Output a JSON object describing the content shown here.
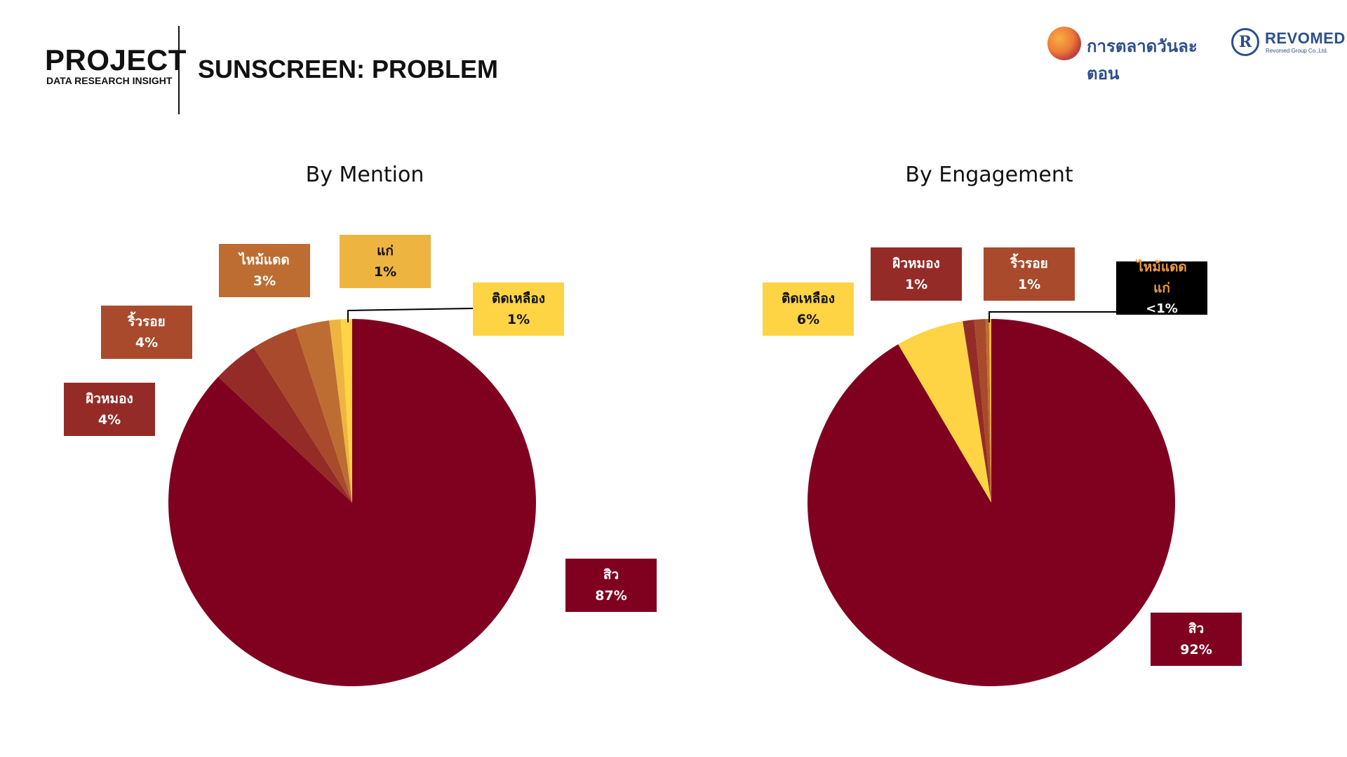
{
  "header": {
    "project_title": "PROJECT",
    "project_subtitle": "DATA RESEARCH INSIGHT",
    "page_title": "SUNSCREEN: PROBLEM"
  },
  "logos": {
    "logo1_text": "การตลาดวันละตอน",
    "logo2_mark": "R",
    "logo2_text": "REVOMED",
    "logo2_sub": "Revomed Group Co.,Ltd."
  },
  "chart_data": [
    {
      "type": "pie",
      "title": "By Mention",
      "slices": [
        {
          "label": "สิว",
          "value": 87,
          "display": "87%",
          "color": "#800020",
          "text_color": "#ffffff"
        },
        {
          "label": "ผิวหมอง",
          "value": 4,
          "display": "4%",
          "color": "#952b26",
          "text_color": "#ffffff"
        },
        {
          "label": "ริ้วรอย",
          "value": 4,
          "display": "4%",
          "color": "#a84a2b",
          "text_color": "#ffffff"
        },
        {
          "label": "ไหม้แดด",
          "value": 3,
          "display": "3%",
          "color": "#bd6d32",
          "text_color": "#ffffff"
        },
        {
          "label": "แก่",
          "value": 1,
          "display": "1%",
          "color": "#edb540",
          "text_color": "#111111"
        },
        {
          "label": "ติดเหลือง",
          "value": 1,
          "display": "1%",
          "color": "#fed444",
          "text_color": "#111111"
        }
      ]
    },
    {
      "type": "pie",
      "title": "By Engagement",
      "slices": [
        {
          "label": "สิว",
          "value": 92,
          "display": "92%",
          "color": "#800020",
          "text_color": "#ffffff"
        },
        {
          "label": "ติดเหลือง",
          "value": 6,
          "display": "6%",
          "color": "#fed444",
          "text_color": "#111111"
        },
        {
          "label": "ผิวหมอง",
          "value": 1,
          "display": "1%",
          "color": "#952b26",
          "text_color": "#ffffff"
        },
        {
          "label": "ริ้วรอย",
          "value": 1,
          "display": "1%",
          "color": "#a84a2b",
          "text_color": "#ffffff"
        },
        {
          "label": "ไหม้แดด",
          "value": 0.3,
          "display": "",
          "color": "#bd6d32",
          "text_color": "#ee9a44"
        },
        {
          "label": "แก่",
          "value": 0.2,
          "display": "<1%",
          "color": "#edb540",
          "text_color": "#ffffff"
        }
      ]
    }
  ]
}
